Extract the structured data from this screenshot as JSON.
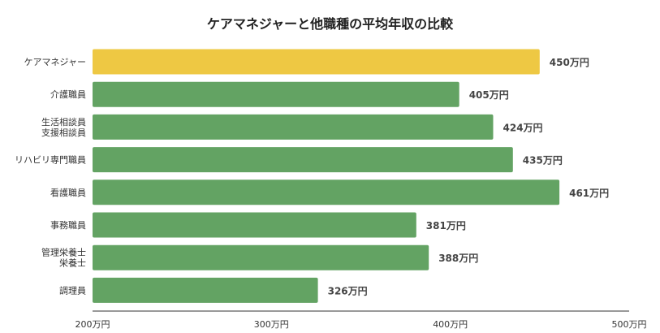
{
  "chart_data": {
    "type": "bar",
    "orientation": "horizontal",
    "title": "ケアマネジャーと他職種の平均年収の比較",
    "categories": [
      [
        "ケアマネジャー"
      ],
      [
        "介護職員"
      ],
      [
        "生活相談員",
        "支援相談員"
      ],
      [
        "リハビリ専門職員"
      ],
      [
        "看護職員"
      ],
      [
        "事務職員"
      ],
      [
        "管理栄養士",
        "栄養士"
      ],
      [
        "調理員"
      ]
    ],
    "values": [
      450,
      405,
      424,
      435,
      461,
      381,
      388,
      326
    ],
    "value_labels": [
      "450万円",
      "405万円",
      "424万円",
      "435万円",
      "461万円",
      "381万円",
      "388万円",
      "326万円"
    ],
    "highlight_index": 0,
    "xlim": [
      200,
      500
    ],
    "ticks": [
      200,
      300,
      400,
      500
    ],
    "tick_labels": [
      "200万円",
      "300万円",
      "400万円",
      "500万円"
    ],
    "xlabel": "",
    "ylabel": "",
    "grid": false,
    "colors": {
      "highlight": "#EEC843",
      "default": "#63A363",
      "axis": "#333333"
    }
  }
}
